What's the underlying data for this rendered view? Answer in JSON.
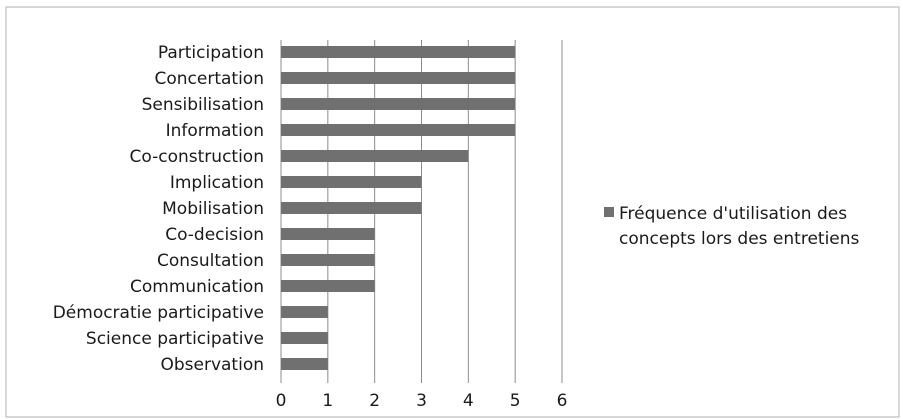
{
  "chart_data": {
    "type": "bar",
    "orientation": "horizontal",
    "categories": [
      "Participation",
      "Concertation",
      "Sensibilisation",
      "Information",
      "Co-construction",
      "Implication",
      "Mobilisation",
      "Co-decision",
      "Consultation",
      "Communication",
      "Démocratie participative",
      "Science participative",
      "Observation"
    ],
    "series": [
      {
        "name": "Fréquence d'utilisation des concepts lors des entretiens",
        "legend_lines": [
          "Fréquence d'utilisation des",
          "concepts lors des entretiens"
        ],
        "values": [
          5,
          5,
          5,
          5,
          4,
          3,
          3,
          2,
          2,
          2,
          1,
          1,
          1
        ],
        "color": "#707070"
      }
    ],
    "xlim": [
      0,
      6
    ],
    "x_ticks": [
      "0",
      "1",
      "2",
      "3",
      "4",
      "5",
      "6"
    ],
    "grid": "vertical",
    "legend_position": "right",
    "title": "",
    "xlabel": "",
    "ylabel": ""
  },
  "colors": {
    "bar": "#707070",
    "grid": "#8c8c8c",
    "frame": "#b0b0b0",
    "text": "#1a1a1a"
  }
}
